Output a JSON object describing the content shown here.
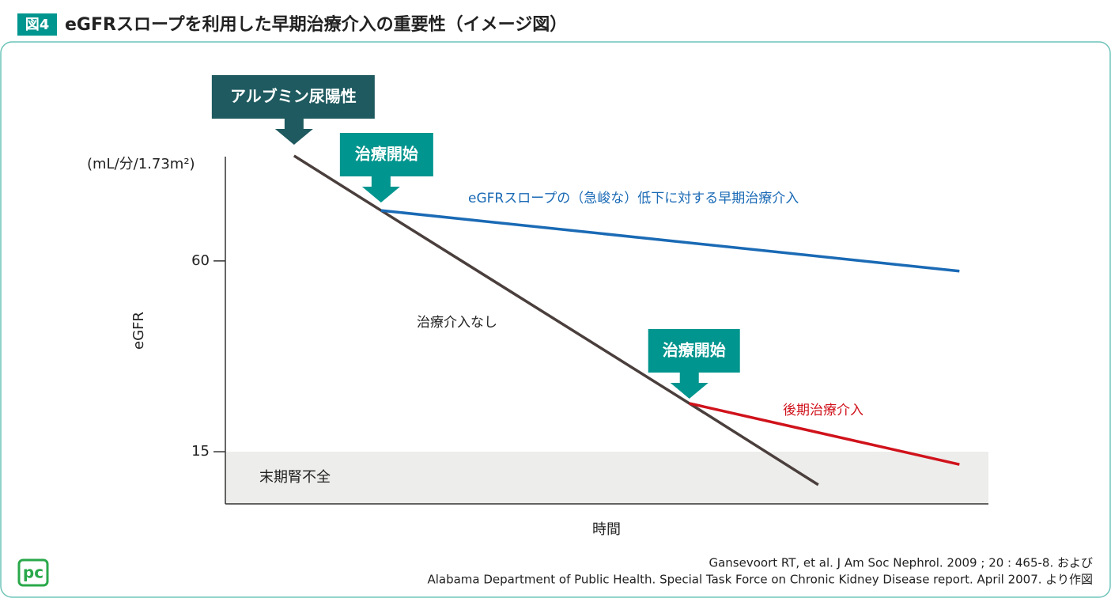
{
  "chart_data": {
    "type": "line",
    "figure_label": "図4",
    "title": "eGFRスロープを利用した早期治療介入の重要性（イメージ図）",
    "y_unit": "(mL/分/1.73m²)",
    "y_label": "eGFR",
    "x_label": "時間",
    "xlim": [
      0,
      100
    ],
    "ylim": [
      2.7,
      84.6
    ],
    "yticks": [
      60,
      15
    ],
    "series": [
      {
        "name": "治療介入なし",
        "color": "#4a3f3c",
        "x": [
          9.0,
          20.4,
          60.8,
          77.7
        ],
        "values": [
          84.8,
          71.9,
          26.4,
          7.2
        ]
      },
      {
        "name": "eGFRスロープの（急峻な）低下に対する早期治療介入",
        "color": "#1a6ab5",
        "x": [
          20.4,
          96.2
        ],
        "values": [
          71.9,
          57.6
        ]
      },
      {
        "name": "後期治療介入",
        "color": "#d0121b",
        "x": [
          60.8,
          96.2
        ],
        "values": [
          26.4,
          12.0
        ]
      }
    ],
    "band": {
      "label": "末期腎不全",
      "range": [
        2.7,
        15
      ],
      "color": "#ededeb"
    },
    "markers": [
      {
        "label": "アルブミン尿陽性",
        "x": 9.0,
        "color": "#1e5a5f"
      },
      {
        "label": "治療開始",
        "x": 20.4,
        "color": "#00958e"
      },
      {
        "label": "治療開始",
        "x": 60.8,
        "color": "#00958e"
      }
    ],
    "source": [
      "Gansevoort RT, et al. J Am Soc Nephrol. 2009 ; 20 : 465-8. および",
      "Alabama Department of Public Health. Special Task Force on Chronic Kidney Disease report. April 2007. より作図"
    ],
    "logo": "pc"
  }
}
